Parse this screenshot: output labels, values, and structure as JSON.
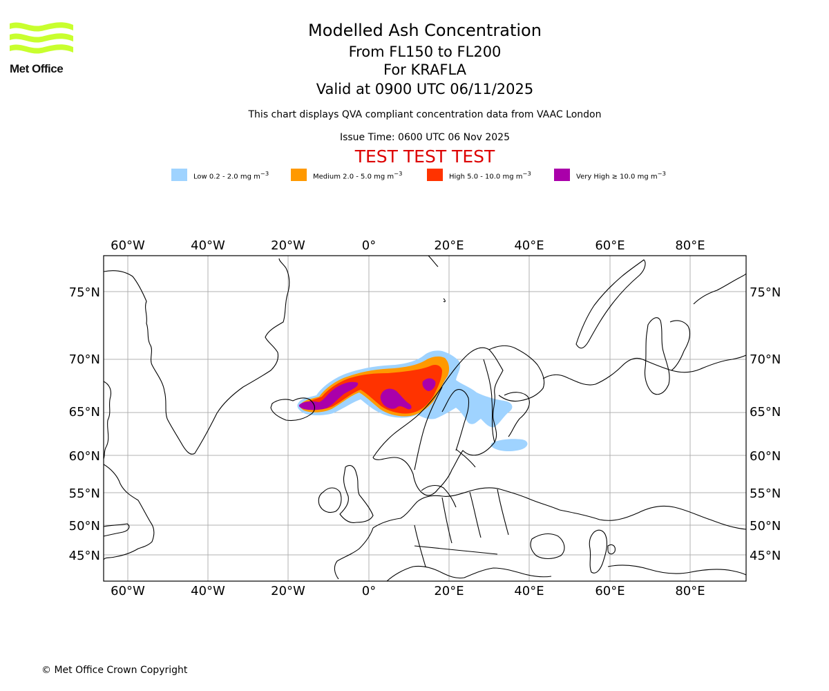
{
  "logo": {
    "name": "Met Office",
    "brand_color": "#c8ff2e"
  },
  "header": {
    "title": "Modelled Ash Concentration",
    "levels": "From FL150 to FL200",
    "volcano": "For KRAFLA",
    "valid": "Valid at 0900 UTC 06/11/2025",
    "description": "This chart displays QVA compliant concentration data from VAAC London",
    "issue_time": "Issue Time: 0600 UTC 06 Nov 2025",
    "test_banner": "TEST TEST TEST",
    "test_color": "#dd0000"
  },
  "legend": [
    {
      "label": "Low 0.2 - 2.0 mg m",
      "unit_exp": "−3",
      "color": "#9fd3ff"
    },
    {
      "label": "Medium 2.0 - 5.0 mg m",
      "unit_exp": "−3",
      "color": "#ff9900"
    },
    {
      "label": "High 5.0 - 10.0 mg m",
      "unit_exp": "−3",
      "color": "#ff3300"
    },
    {
      "label": "Very High ≥ 10.0 mg m",
      "unit_exp": "−3",
      "color": "#aa00aa"
    }
  ],
  "map": {
    "lon_ticks": [
      "60°W",
      "40°W",
      "20°W",
      "0°",
      "20°E",
      "40°E",
      "60°E",
      "80°E"
    ],
    "lat_ticks": [
      "75°N",
      "70°N",
      "65°N",
      "60°N",
      "55°N",
      "50°N",
      "45°N"
    ],
    "extent": {
      "lon": [
        -66,
        94
      ],
      "lat": [
        41.5,
        78
      ]
    }
  },
  "footer": {
    "copyright": "© Met Office Crown Copyright"
  }
}
